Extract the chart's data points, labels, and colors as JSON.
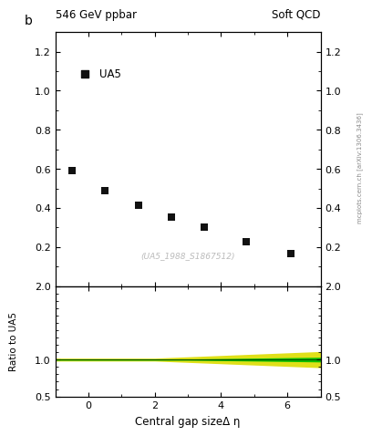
{
  "title_left": "546 GeV ppbar",
  "title_right": "Soft QCD",
  "ylabel_main": "b",
  "ylabel_ratio": "Ratio to UA5",
  "xlabel": "Central gap sizeΔ η",
  "watermark": "(UA5_1988_S1867512)",
  "side_label": "mcplots.cern.ch [arXiv:1306.3436]",
  "legend_label": "UA5",
  "scatter_x": [
    -0.5,
    0.5,
    1.5,
    2.5,
    3.5,
    4.75,
    6.1
  ],
  "scatter_y": [
    0.59,
    0.49,
    0.415,
    0.355,
    0.3,
    0.225,
    0.165
  ],
  "ylim_main": [
    0.0,
    1.3
  ],
  "ylim_ratio": [
    0.5,
    2.0
  ],
  "xlim": [
    -1.0,
    7.0
  ],
  "marker_color": "#111111",
  "marker_size": 40,
  "green_band_color": "#00bb00",
  "yellow_band_color": "#dddd00",
  "ratio_line_color": "#005500",
  "background_color": "#ffffff",
  "watermark_color": "#bbbbbb",
  "side_text_color": "#888888"
}
